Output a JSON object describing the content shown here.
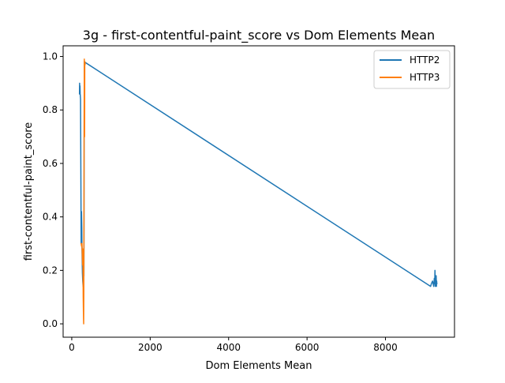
{
  "chart_data": {
    "type": "line",
    "title": "3g - first-contentful-paint_score vs Dom Elements Mean",
    "xlabel": "Dom Elements Mean",
    "ylabel": "first-contentful-paint_score",
    "xlim": [
      -220,
      9760
    ],
    "ylim": [
      -0.05,
      1.04
    ],
    "xticks": [
      0,
      2000,
      4000,
      6000,
      8000
    ],
    "xtick_labels": [
      "0",
      "2000",
      "4000",
      "6000",
      "8000"
    ],
    "yticks": [
      0.0,
      0.2,
      0.4,
      0.6,
      0.8,
      1.0
    ],
    "ytick_labels": [
      "0.0",
      "0.2",
      "0.4",
      "0.6",
      "0.8",
      "1.0"
    ],
    "grid": false,
    "legend_position": "upper right",
    "series": [
      {
        "name": "HTTP2",
        "color": "#1f77b4",
        "x": [
          197,
          201,
          205,
          210,
          215,
          224,
          232,
          240,
          248,
          256,
          260,
          266,
          272,
          280,
          290,
          300,
          310,
          320,
          9150,
          9170,
          9200,
          9215,
          9230,
          9245,
          9255,
          9262,
          9270,
          9278,
          9285,
          9292,
          9300,
          9305,
          9310
        ],
        "y": [
          0.86,
          0.9,
          0.87,
          0.89,
          0.86,
          0.84,
          0.58,
          0.3,
          0.42,
          0.36,
          0.29,
          0.24,
          0.19,
          0.16,
          0.14,
          0.16,
          0.18,
          0.98,
          0.14,
          0.15,
          0.16,
          0.15,
          0.14,
          0.17,
          0.15,
          0.2,
          0.14,
          0.17,
          0.15,
          0.18,
          0.14,
          0.16,
          0.15
        ]
      },
      {
        "name": "HTTP3",
        "color": "#ff7f0e",
        "x": [
          240,
          250,
          260,
          268,
          276,
          284,
          292,
          300,
          304,
          308,
          312,
          316,
          320,
          324,
          328,
          332,
          336,
          340
        ],
        "y": [
          0.3,
          0.29,
          0.3,
          0.26,
          0.22,
          0.28,
          0.1,
          0.02,
          0.0,
          0.12,
          0.45,
          0.8,
          0.99,
          0.9,
          0.7,
          0.97,
          0.98,
          0.97
        ]
      }
    ]
  }
}
